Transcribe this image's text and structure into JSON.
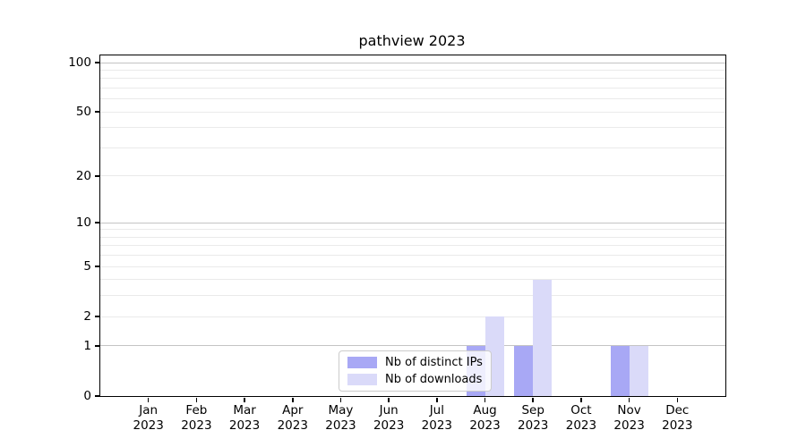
{
  "title": "pathview 2023",
  "chart_data": {
    "type": "bar",
    "title": "pathview 2023",
    "x": [
      "Jan",
      "Feb",
      "Mar",
      "Apr",
      "May",
      "Jun",
      "Jul",
      "Aug",
      "Sep",
      "Oct",
      "Nov",
      "Dec"
    ],
    "x_year": "2023",
    "series": [
      {
        "name": "Nb of distinct IPs",
        "color": "#a8a8f5",
        "values": [
          0,
          0,
          0,
          0,
          0,
          0,
          0,
          1,
          1,
          0,
          1,
          0
        ]
      },
      {
        "name": "Nb of downloads",
        "color": "#dadaf9",
        "values": [
          0,
          0,
          0,
          0,
          0,
          0,
          0,
          2,
          4,
          0,
          1,
          0
        ]
      }
    ],
    "y_scale": "log1p",
    "y_max_tick": 100,
    "y_ticks": [
      "0",
      "1",
      "2",
      "5",
      "10",
      "20",
      "50",
      "100"
    ],
    "y_major_gridlines": [
      1,
      10,
      100
    ],
    "y_minor_gridlines": [
      2,
      3,
      4,
      5,
      6,
      7,
      8,
      9,
      20,
      30,
      40,
      50,
      60,
      70,
      80,
      90
    ],
    "legend_position": "lower center",
    "grid_major_color": "#c4c4c4",
    "grid_minor_color": "#eaeaea",
    "axis_color": "#000000"
  }
}
